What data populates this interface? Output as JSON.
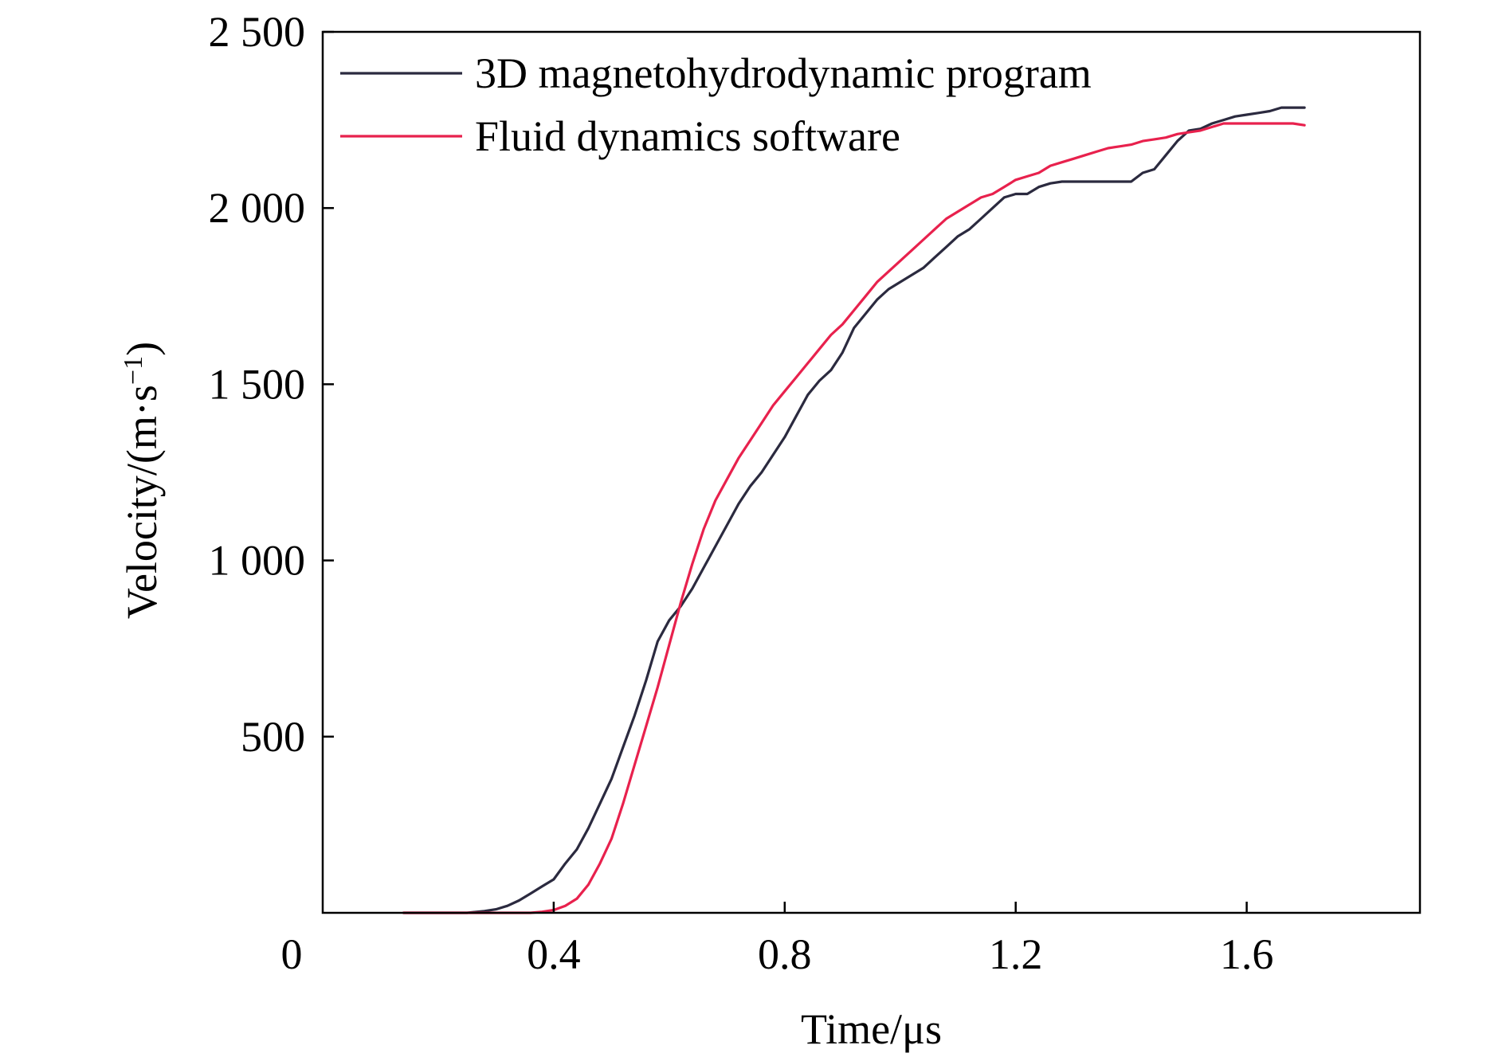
{
  "chart_data": {
    "type": "line",
    "xlabel": "Time/μs",
    "ylabel_main": "Velocity/(m·s",
    "ylabel_sup": "−1",
    "ylabel_close": ")",
    "xlim": [
      0,
      1.9
    ],
    "ylim": [
      0,
      2500
    ],
    "origin_label": "0",
    "xticks": [
      {
        "value": 0.4,
        "label": "0.4"
      },
      {
        "value": 0.8,
        "label": "0.8"
      },
      {
        "value": 1.2,
        "label": "1.2"
      },
      {
        "value": 1.6,
        "label": "1.6"
      }
    ],
    "yticks": [
      {
        "value": 500,
        "label": "500"
      },
      {
        "value": 1000,
        "label": "1 000"
      },
      {
        "value": 1500,
        "label": "1 500"
      },
      {
        "value": 2000,
        "label": "2 000"
      },
      {
        "value": 2500,
        "label": "2 500"
      }
    ],
    "legend_position": "top-left",
    "series": [
      {
        "name": "3D magnetohydrodynamic program",
        "color": "#2b2a3f",
        "x": [
          0.14,
          0.25,
          0.28,
          0.3,
          0.32,
          0.34,
          0.36,
          0.38,
          0.4,
          0.42,
          0.44,
          0.46,
          0.48,
          0.5,
          0.52,
          0.54,
          0.56,
          0.58,
          0.6,
          0.62,
          0.64,
          0.66,
          0.68,
          0.7,
          0.72,
          0.74,
          0.76,
          0.78,
          0.8,
          0.82,
          0.84,
          0.86,
          0.88,
          0.9,
          0.92,
          0.94,
          0.96,
          0.98,
          1.0,
          1.02,
          1.04,
          1.06,
          1.08,
          1.1,
          1.12,
          1.14,
          1.16,
          1.18,
          1.2,
          1.22,
          1.24,
          1.26,
          1.28,
          1.3,
          1.32,
          1.34,
          1.36,
          1.38,
          1.4,
          1.42,
          1.44,
          1.46,
          1.48,
          1.5,
          1.52,
          1.54,
          1.56,
          1.58,
          1.6,
          1.62,
          1.64,
          1.66,
          1.68,
          1.7
        ],
        "y": [
          0,
          0,
          5,
          10,
          20,
          35,
          55,
          75,
          95,
          140,
          180,
          240,
          310,
          380,
          470,
          560,
          660,
          770,
          830,
          870,
          920,
          980,
          1040,
          1100,
          1160,
          1210,
          1250,
          1300,
          1350,
          1410,
          1470,
          1510,
          1540,
          1590,
          1660,
          1700,
          1740,
          1770,
          1790,
          1810,
          1830,
          1860,
          1890,
          1920,
          1940,
          1970,
          2000,
          2030,
          2040,
          2040,
          2060,
          2070,
          2075,
          2075,
          2075,
          2075,
          2075,
          2075,
          2075,
          2100,
          2110,
          2150,
          2190,
          2220,
          2225,
          2240,
          2250,
          2260,
          2265,
          2270,
          2275,
          2285,
          2285,
          2285
        ]
      },
      {
        "name": "Fluid dynamics software",
        "color": "#e8214d",
        "x": [
          0.14,
          0.36,
          0.38,
          0.4,
          0.42,
          0.44,
          0.46,
          0.48,
          0.5,
          0.52,
          0.54,
          0.56,
          0.58,
          0.6,
          0.62,
          0.64,
          0.66,
          0.68,
          0.7,
          0.72,
          0.74,
          0.76,
          0.78,
          0.8,
          0.82,
          0.84,
          0.86,
          0.88,
          0.9,
          0.92,
          0.94,
          0.96,
          0.98,
          1.0,
          1.02,
          1.04,
          1.06,
          1.08,
          1.1,
          1.12,
          1.14,
          1.16,
          1.18,
          1.2,
          1.22,
          1.24,
          1.26,
          1.28,
          1.3,
          1.32,
          1.34,
          1.36,
          1.38,
          1.4,
          1.42,
          1.44,
          1.46,
          1.48,
          1.5,
          1.52,
          1.54,
          1.56,
          1.58,
          1.6,
          1.62,
          1.64,
          1.66,
          1.68,
          1.7
        ],
        "y": [
          0,
          0,
          3,
          8,
          20,
          40,
          80,
          140,
          210,
          310,
          420,
          530,
          640,
          760,
          880,
          990,
          1090,
          1170,
          1230,
          1290,
          1340,
          1390,
          1440,
          1480,
          1520,
          1560,
          1600,
          1640,
          1670,
          1710,
          1750,
          1790,
          1820,
          1850,
          1880,
          1910,
          1940,
          1970,
          1990,
          2010,
          2030,
          2040,
          2060,
          2080,
          2090,
          2100,
          2120,
          2130,
          2140,
          2150,
          2160,
          2170,
          2175,
          2180,
          2190,
          2195,
          2200,
          2210,
          2215,
          2220,
          2230,
          2240,
          2240,
          2240,
          2240,
          2240,
          2240,
          2240,
          2235
        ]
      }
    ]
  }
}
